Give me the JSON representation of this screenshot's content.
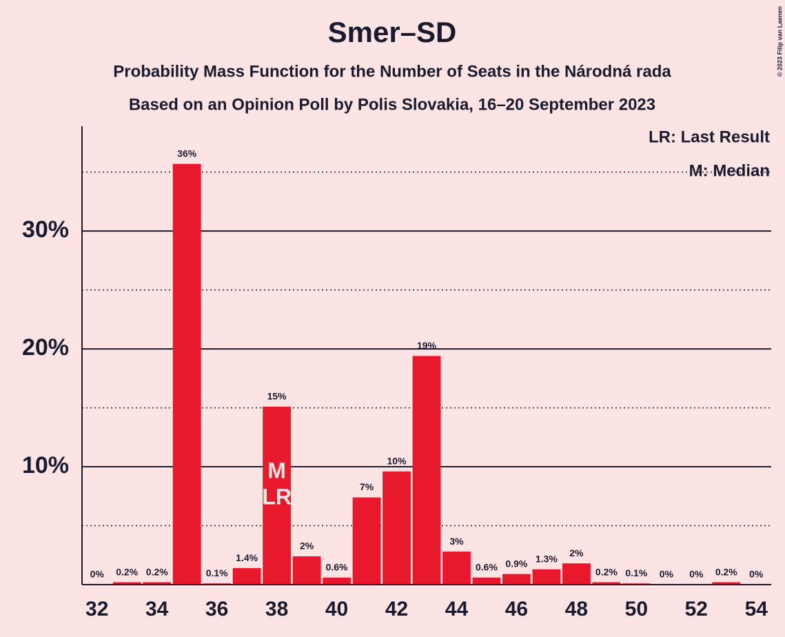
{
  "chart_data": {
    "type": "bar",
    "title": "Smer–SD",
    "subtitle": [
      "Probability Mass Function for the Number of Seats in the Národná rada",
      "Based on an Opinion Poll by Polis Slovakia, 16–20 September 2023"
    ],
    "credit": "© 2023 Filip van Laenen",
    "x": [
      32,
      33,
      34,
      35,
      36,
      37,
      38,
      39,
      40,
      41,
      42,
      43,
      44,
      45,
      46,
      47,
      48,
      49,
      50,
      51,
      52,
      53,
      54
    ],
    "values": [
      0,
      0.2,
      0.2,
      35.7,
      0.1,
      1.4,
      15.1,
      2.4,
      0.6,
      7.4,
      9.6,
      19.4,
      2.8,
      0.6,
      0.9,
      1.3,
      1.8,
      0.2,
      0.1,
      0,
      0,
      0.2,
      0
    ],
    "value_labels": [
      "0%",
      "0.2%",
      "0.2%",
      "36%",
      "0.1%",
      "1.4%",
      "15%",
      "2%",
      "0.6%",
      "7%",
      "10%",
      "19%",
      "3%",
      "0.6%",
      "0.9%",
      "1.3%",
      "2%",
      "0.2%",
      "0.1%",
      "0%",
      "0%",
      "0.2%",
      "0%"
    ],
    "color": "#e8192c",
    "xlim": [
      31.5,
      54.5
    ],
    "xticks": [
      32,
      34,
      36,
      38,
      40,
      42,
      44,
      46,
      48,
      50,
      52,
      54
    ],
    "ylim": [
      0,
      38.9
    ],
    "yticks": [
      {
        "value": 10,
        "label": "10%"
      },
      {
        "value": 20,
        "label": "20%"
      },
      {
        "value": 30,
        "label": "30%"
      }
    ],
    "minor_gridlines": [
      5,
      15,
      25,
      35
    ],
    "grid": true,
    "annotations": [
      {
        "x": 38,
        "text": "M"
      },
      {
        "x": 38,
        "text": "LR"
      }
    ],
    "legend": [
      "LR: Last Result",
      "M: Median"
    ]
  }
}
